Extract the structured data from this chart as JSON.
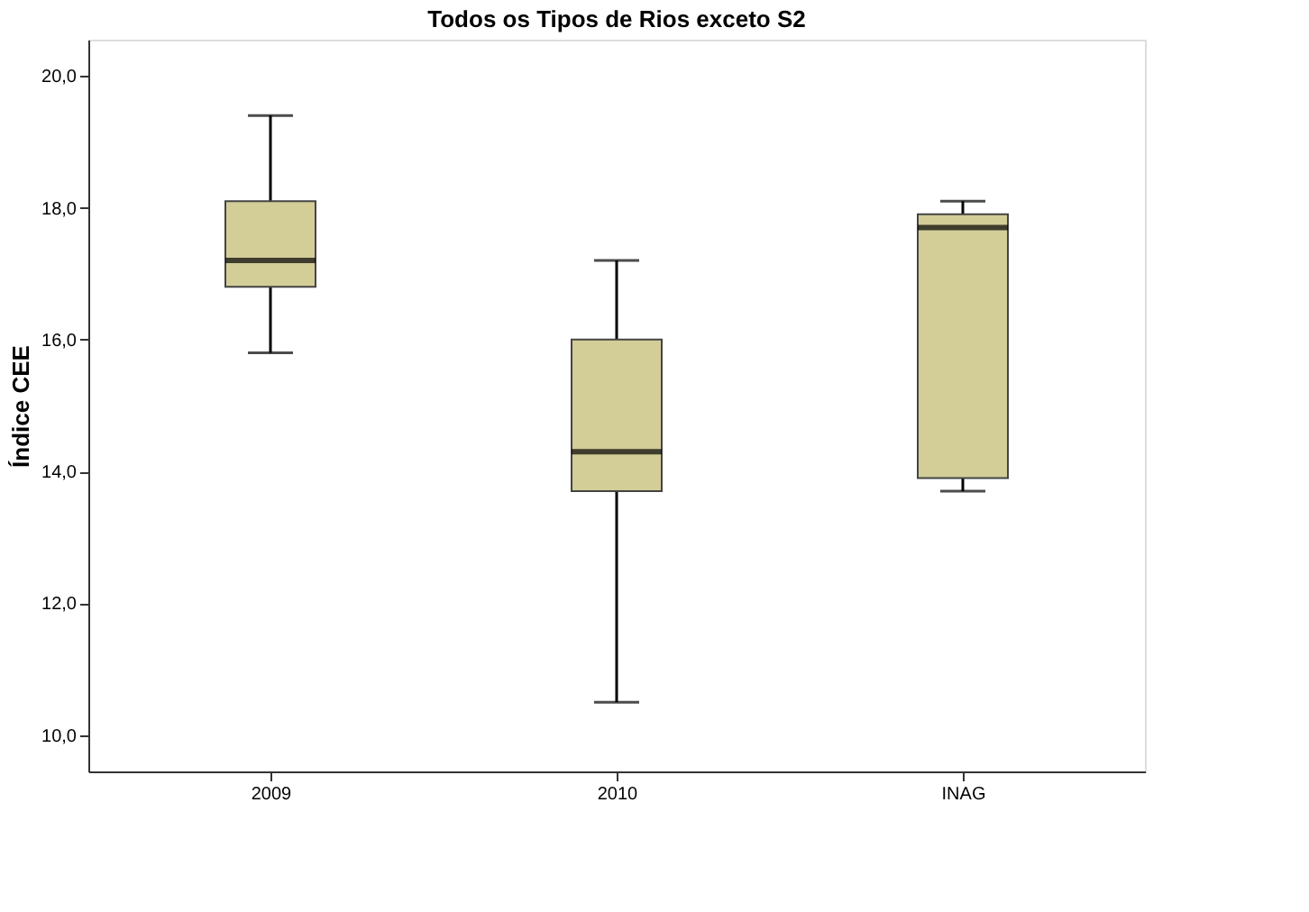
{
  "chart_data": {
    "type": "box",
    "title": "Todos os Tipos de Rios exceto S2",
    "ylabel": "Índice CEE",
    "categories": [
      "2009",
      "2010",
      "INAG"
    ],
    "boxes": [
      {
        "low": 15.8,
        "q1": 16.8,
        "median": 17.2,
        "q3": 18.1,
        "high": 19.4
      },
      {
        "low": 10.5,
        "q1": 13.7,
        "median": 14.3,
        "q3": 16.0,
        "high": 17.2
      },
      {
        "low": 13.7,
        "q1": 13.9,
        "median": 17.7,
        "q3": 17.9,
        "high": 18.1
      }
    ],
    "color": "#d3cd98",
    "ylim": [
      9.45,
      20.55
    ],
    "yticks": [
      {
        "value": 10,
        "label": "10,0"
      },
      {
        "value": 12,
        "label": "12,0"
      },
      {
        "value": 14,
        "label": "14,0"
      },
      {
        "value": 16,
        "label": "16,0"
      },
      {
        "value": 18,
        "label": "18,0"
      },
      {
        "value": 20,
        "label": "20,0"
      }
    ],
    "grid": false
  }
}
